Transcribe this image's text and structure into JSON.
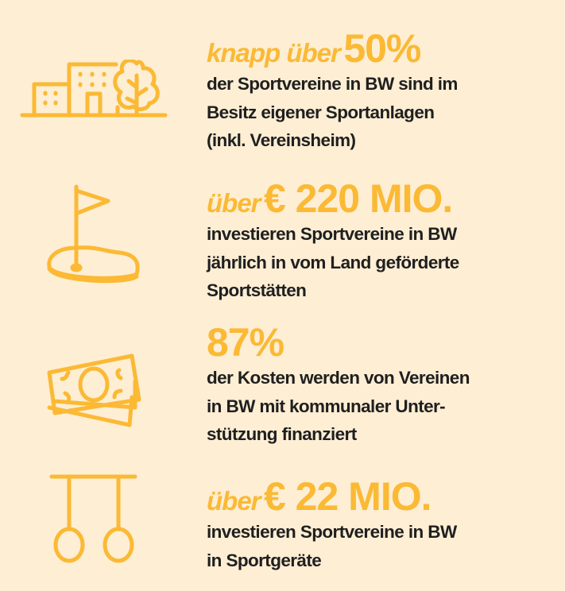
{
  "colors": {
    "background": "#fdeed4",
    "accent": "#fbb934",
    "text": "#1f1f1f"
  },
  "facts": [
    {
      "icon": "buildings-tree-icon",
      "prefix": "knapp über",
      "value": "50%",
      "lines": [
        "der Sportvereine in BW sind im",
        "Besitz eigener Sportanlagen",
        "(inkl. Vereinsheim)"
      ]
    },
    {
      "icon": "golf-flag-icon",
      "prefix": "über",
      "value": "€ 220 MIO.",
      "lines": [
        "investieren Sportvereine in BW",
        "jährlich in vom Land geförderte",
        "Sportstätten"
      ]
    },
    {
      "icon": "banknotes-icon",
      "prefix": "",
      "value": "87%",
      "lines": [
        "der Kosten werden von Vereinen",
        "in BW mit kommunaler Unter-",
        "stützung finanziert"
      ]
    },
    {
      "icon": "gymnastic-rings-icon",
      "prefix": "über",
      "value": "€ 22 MIO.",
      "lines": [
        "investieren Sportvereine in BW",
        "in Sportgeräte"
      ]
    }
  ]
}
